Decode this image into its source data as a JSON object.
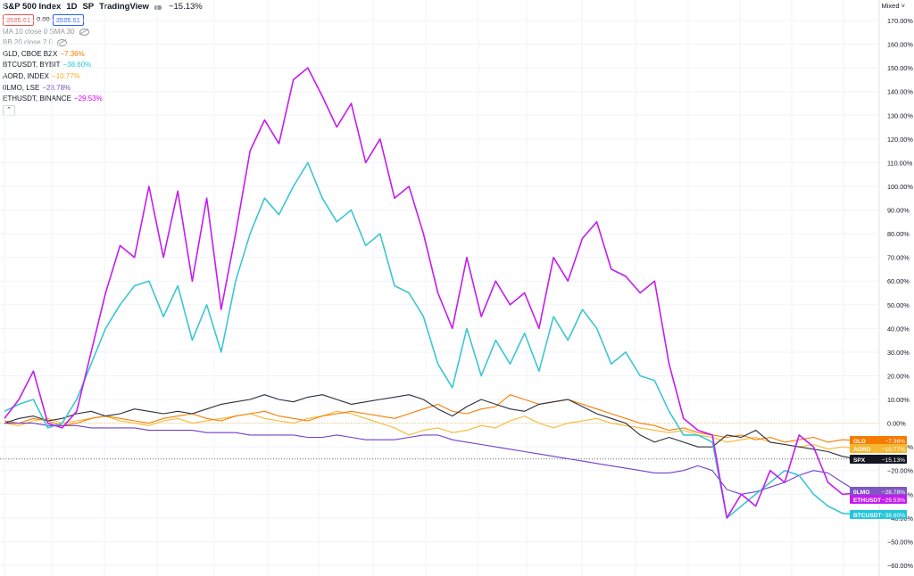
{
  "header": {
    "symbol": "S&P 500 Index",
    "interval": "1D",
    "exchange": "SP",
    "source": "TradingView",
    "change": "−15.13%",
    "bid": "3585.61",
    "spread": "0.00",
    "ask": "3585.61",
    "scale_mode": "Mixed"
  },
  "indicators": [
    {
      "label": "MA 10 close 0 SMA 30"
    },
    {
      "label": "BB 20 close 2 0"
    }
  ],
  "compare": [
    {
      "label": "GLD, CBOE BZX",
      "value": "−7.36%",
      "color": "#f57c00"
    },
    {
      "label": "BTCUSDT, BYBIT",
      "value": "−38.60%",
      "color": "#26c6da"
    },
    {
      "label": "AORD, INDEX",
      "value": "−10.77%",
      "color": "#f9a825"
    },
    {
      "label": "0LMO, LSE",
      "value": "−28.78%",
      "color": "#7e57c2"
    },
    {
      "label": "ETHUSDT, BINANCE",
      "value": "−29.53%",
      "color": "#d500f9"
    }
  ],
  "chart_data": {
    "type": "line",
    "ylabel": "",
    "ylim": [
      -60,
      170
    ],
    "yticks": [
      "170.00%",
      "160.00%",
      "150.00%",
      "140.00%",
      "130.00%",
      "120.00%",
      "110.00%",
      "100.00%",
      "90.00%",
      "80.00%",
      "70.00%",
      "60.00%",
      "50.00%",
      "40.00%",
      "30.00%",
      "20.00%",
      "10.00%",
      "0.00%",
      "−10.00%",
      "−20.00%",
      "−30.00%",
      "−40.00%",
      "−50.00%",
      "−60.00%"
    ],
    "ytick_values": [
      170,
      160,
      150,
      140,
      130,
      120,
      110,
      100,
      90,
      80,
      70,
      60,
      50,
      40,
      30,
      20,
      10,
      0,
      -10,
      -20,
      -30,
      -40,
      -50,
      -60
    ],
    "grid": true,
    "x_points": 60,
    "series": [
      {
        "key": "eth",
        "name": "ETHUSDT",
        "color": "#c41cf0",
        "values": [
          2,
          10,
          22,
          0,
          -2,
          5,
          30,
          55,
          75,
          70,
          100,
          70,
          98,
          60,
          95,
          48,
          80,
          115,
          128,
          118,
          145,
          150,
          138,
          125,
          135,
          110,
          120,
          95,
          100,
          80,
          55,
          40,
          70,
          45,
          60,
          50,
          55,
          40,
          70,
          60,
          78,
          85,
          65,
          62,
          55,
          60,
          25,
          2,
          -3,
          -5,
          -40,
          -30,
          -35,
          -20,
          -25,
          -5,
          -10,
          -25,
          -30,
          -29.53
        ]
      },
      {
        "key": "btc",
        "name": "BTCUSDT",
        "color": "#3cc6d2",
        "values": [
          5,
          8,
          10,
          -2,
          0,
          10,
          25,
          40,
          50,
          58,
          60,
          45,
          58,
          35,
          50,
          30,
          60,
          80,
          95,
          88,
          100,
          110,
          95,
          85,
          90,
          75,
          80,
          58,
          55,
          45,
          25,
          15,
          40,
          20,
          35,
          25,
          38,
          22,
          45,
          35,
          48,
          40,
          25,
          30,
          20,
          18,
          5,
          -5,
          -5,
          -8,
          -40,
          -35,
          -30,
          -25,
          -20,
          -22,
          -30,
          -35,
          -38,
          -38.6
        ]
      },
      {
        "key": "spx",
        "name": "SPX",
        "color": "#2a2e39",
        "values": [
          0,
          2,
          3,
          1,
          2,
          4,
          5,
          3,
          4,
          6,
          5,
          4,
          5,
          4,
          6,
          8,
          9,
          10,
          12,
          10,
          9,
          11,
          12,
          10,
          8,
          9,
          10,
          11,
          12,
          10,
          6,
          3,
          7,
          10,
          8,
          6,
          5,
          8,
          9,
          10,
          7,
          4,
          2,
          0,
          -5,
          -8,
          -6,
          -8,
          -10,
          -10,
          -5,
          -6,
          -3,
          -8,
          -9,
          -10,
          -11,
          -12,
          -14,
          -15.13
        ]
      },
      {
        "key": "gld",
        "name": "GLD",
        "color": "#f57c00",
        "values": [
          1,
          0,
          2,
          1,
          -1,
          0,
          2,
          3,
          2,
          1,
          0,
          2,
          3,
          4,
          2,
          1,
          3,
          4,
          5,
          3,
          2,
          1,
          3,
          4,
          5,
          4,
          3,
          2,
          4,
          6,
          8,
          5,
          4,
          6,
          7,
          12,
          10,
          8,
          9,
          10,
          8,
          6,
          4,
          2,
          0,
          -1,
          -3,
          -2,
          -4,
          -5,
          -6,
          -5,
          -7,
          -6,
          -8,
          -7,
          -6,
          -8,
          -7,
          -7.36
        ]
      },
      {
        "key": "aord",
        "name": "AORD",
        "color": "#f5b731",
        "values": [
          0,
          -1,
          1,
          2,
          0,
          1,
          2,
          3,
          1,
          0,
          -1,
          1,
          2,
          0,
          1,
          2,
          3,
          4,
          2,
          1,
          0,
          2,
          3,
          5,
          4,
          2,
          0,
          -2,
          -5,
          -3,
          -2,
          -4,
          -3,
          -1,
          -2,
          1,
          3,
          0,
          -2,
          0,
          1,
          2,
          0,
          -1,
          -2,
          -3,
          -4,
          -3,
          -5,
          -6,
          -8,
          -7,
          -6,
          -8,
          -9,
          -10,
          -9,
          -11,
          -10,
          -10.77
        ]
      },
      {
        "key": "lmo",
        "name": "0LMO",
        "color": "#7040c8",
        "values": [
          0,
          0,
          0,
          -1,
          -1,
          -1,
          -2,
          -2,
          -2,
          -2,
          -3,
          -3,
          -3,
          -3,
          -4,
          -4,
          -4,
          -5,
          -5,
          -5,
          -5,
          -6,
          -6,
          -5,
          -6,
          -7,
          -7,
          -7,
          -6,
          -5,
          -5,
          -7,
          -8,
          -9,
          -10,
          -11,
          -12,
          -13,
          -14,
          -15,
          -16,
          -17,
          -18,
          -19,
          -20,
          -21,
          -21,
          -20,
          -18,
          -20,
          -28,
          -30,
          -29,
          -27,
          -25,
          -22,
          -20,
          -21,
          -25,
          -28.78
        ]
      }
    ],
    "right_labels": [
      {
        "series": "gld",
        "name": "GLD",
        "value": "−7.36%",
        "bg": "#f57c00"
      },
      {
        "series": "aord",
        "name": "AORD",
        "value": "−10.77%",
        "bg": "#f5b731"
      },
      {
        "series": "spx",
        "name": "SPX",
        "value": "−15.13%",
        "bg": "#131722"
      },
      {
        "series": "lmo",
        "name": "0LMO",
        "value": "−28.78%",
        "bg": "#7e57c2"
      },
      {
        "series": "eth",
        "name": "ETHUSDT",
        "value": "−29.53%",
        "bg": "#c41cf0"
      },
      {
        "series": "btc",
        "name": "BTCUSDT",
        "value": "−38.60%",
        "bg": "#26c6da"
      }
    ]
  }
}
